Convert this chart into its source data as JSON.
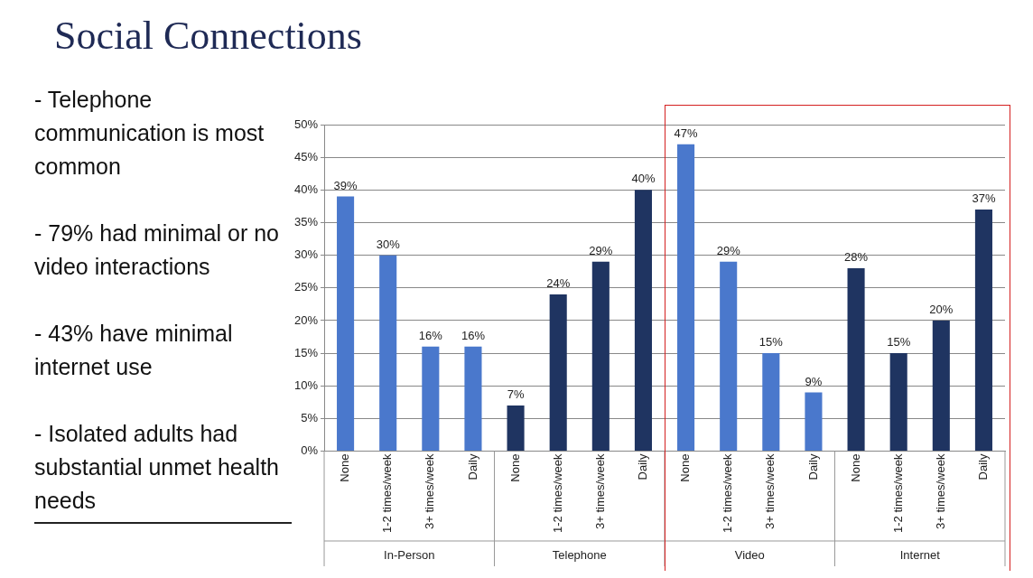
{
  "chart_data": {
    "type": "bar",
    "title": "Social Connections",
    "subtitle": "- Telephone communication is most common\n\n- 79% had minimal or no video interactions\n\n- 43% have minimal internet use\n\n- Isolated adults had substantial unmet health needs",
    "categories": [
      "None",
      "1-2 times/week",
      "3+ times/week",
      "Daily",
      "None",
      "1-2 times/week",
      "3+ times/week",
      "Daily",
      "None",
      "1-2 times/week",
      "3+ times/week",
      "Daily",
      "None",
      "1-2 times/week",
      "3+ times/week",
      "Daily"
    ],
    "values": [
      39,
      30,
      16,
      16,
      7,
      24,
      29,
      40,
      47,
      29,
      15,
      9,
      28,
      15,
      20,
      37
    ],
    "value_labels": [
      "39%",
      "30%",
      "16%",
      "16%",
      "7%",
      "24%",
      "29%",
      "40%",
      "47%",
      "29%",
      "15%",
      "9%",
      "28%",
      "15%",
      "20%",
      "37%"
    ],
    "colors": [
      "#4a78cc",
      "#4a78cc",
      "#4a78cc",
      "#4a78cc",
      "#1f3461",
      "#1f3461",
      "#1f3461",
      "#1f3461",
      "#4a78cc",
      "#4a78cc",
      "#4a78cc",
      "#4a78cc",
      "#1f3461",
      "#1f3461",
      "#1f3461",
      "#1f3461"
    ],
    "ylim": [
      0,
      50
    ],
    "yticks": [
      {
        "value": 0,
        "label": "0%"
      },
      {
        "value": 5,
        "label": "5%"
      },
      {
        "value": 10,
        "label": "10%"
      },
      {
        "value": 15,
        "label": "15%"
      },
      {
        "value": 20,
        "label": "20%"
      },
      {
        "value": 25,
        "label": "25%"
      },
      {
        "value": 30,
        "label": "30%"
      },
      {
        "value": 35,
        "label": "35%"
      },
      {
        "value": 40,
        "label": "40%"
      },
      {
        "value": 45,
        "label": "45%"
      },
      {
        "value": 50,
        "label": "50%"
      }
    ],
    "annotations": [
      "In-Person",
      "Telephone",
      "Video",
      "Internet"
    ],
    "grid": "y",
    "legend": false
  }
}
